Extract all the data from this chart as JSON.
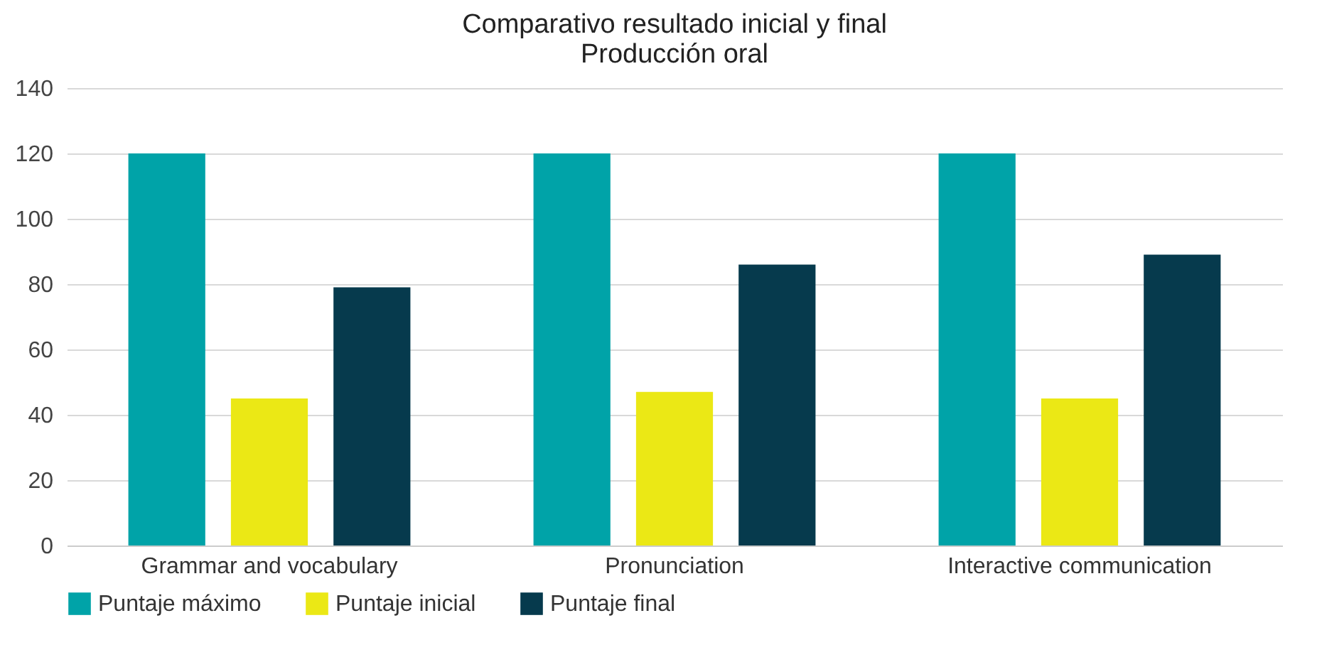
{
  "chart_data": {
    "type": "bar",
    "title": [
      "Comparativo resultado inicial y final",
      "Producción oral"
    ],
    "categories": [
      "Grammar and vocabulary",
      "Pronunciation",
      "Interactive communication"
    ],
    "series": [
      {
        "name": "Puntaje máximo",
        "color": "#00a3a8",
        "values": [
          120,
          120,
          120
        ]
      },
      {
        "name": "Puntaje inicial",
        "color": "#ebe815",
        "values": [
          45,
          47,
          45
        ]
      },
      {
        "name": "Puntaje final",
        "color": "#063a4d",
        "values": [
          79,
          86,
          89
        ]
      }
    ],
    "ylim": [
      0,
      140
    ],
    "yticks": [
      0,
      20,
      40,
      60,
      80,
      100,
      120,
      140
    ],
    "grid": "y",
    "legend": "bottom"
  }
}
